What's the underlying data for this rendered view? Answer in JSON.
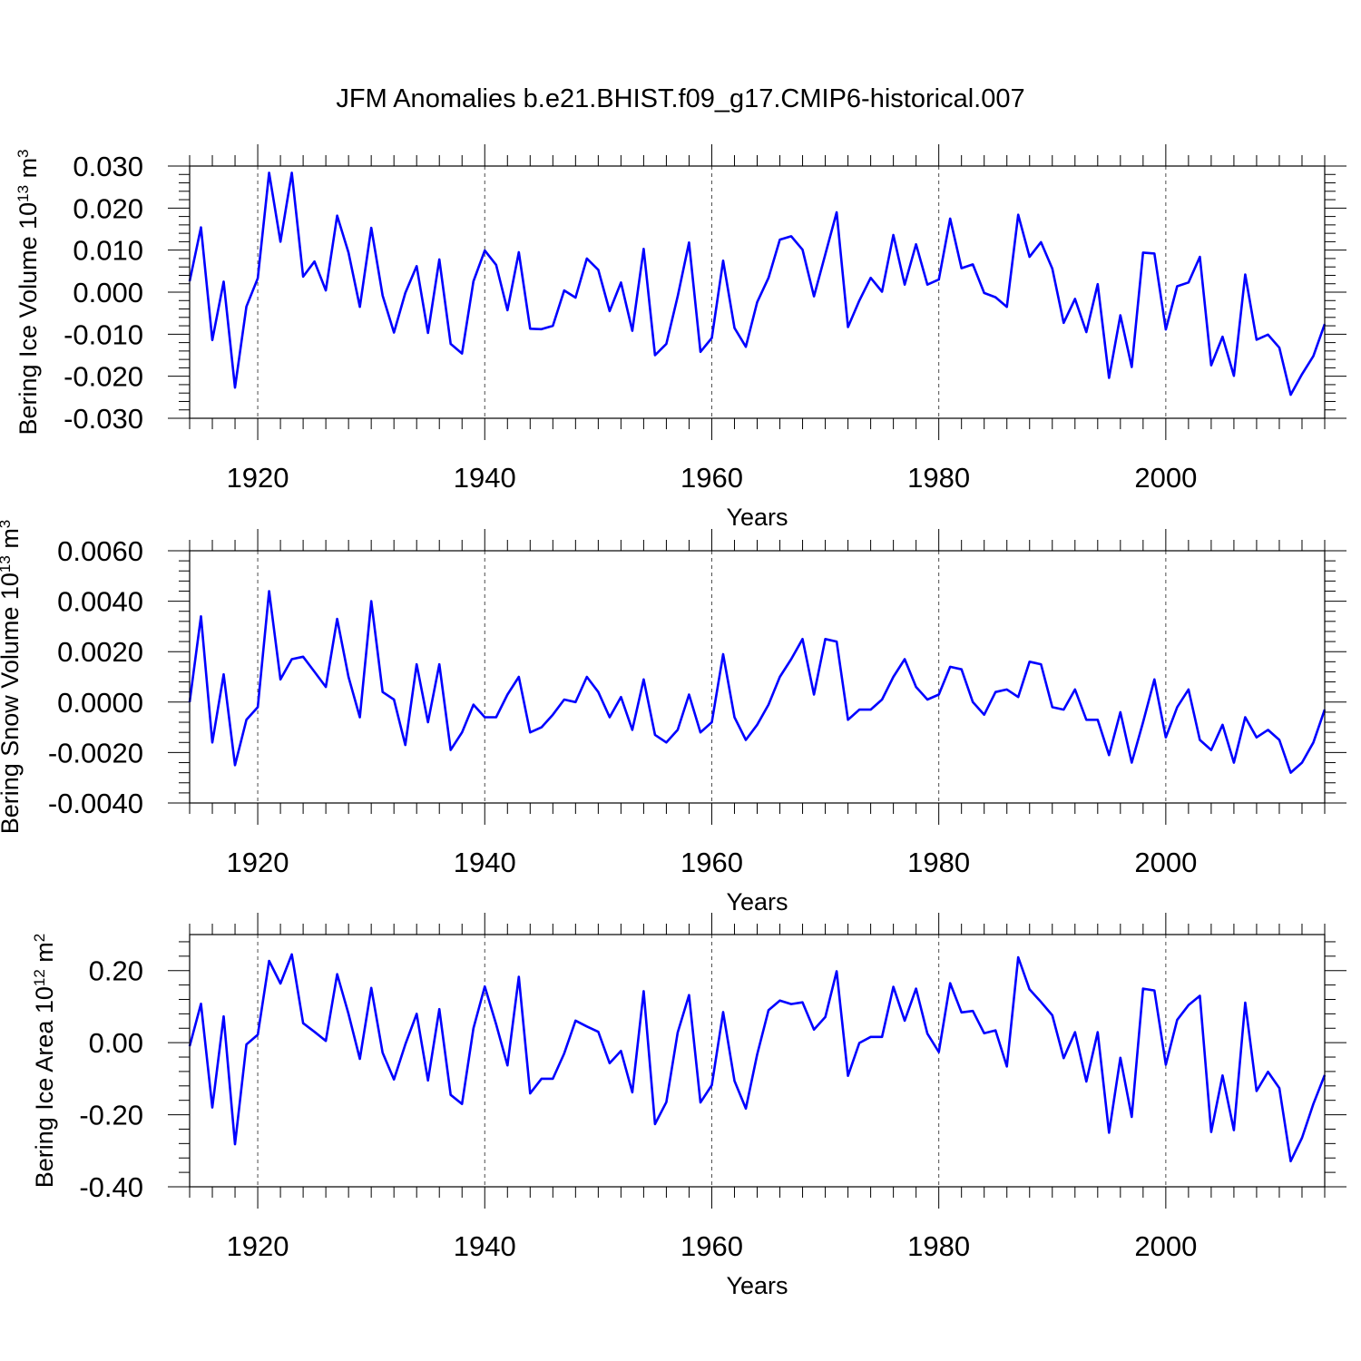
{
  "title": "JFM Anomalies b.e21.BHIST.f09_g17.CMIP6-historical.007",
  "colors": {
    "line": "#0000ff",
    "axis": "#000000",
    "grid": "#000000"
  },
  "chart_data": [
    {
      "type": "line",
      "name": "ice-volume",
      "ylabel_main": "Bering Ice Volume 10",
      "ylabel_exp": "13",
      "ylabel_unit": " m",
      "ylabel_unit_exp": "3",
      "xlabel": "Years",
      "xlim": [
        1914,
        2014
      ],
      "ylim": [
        -0.03,
        0.03
      ],
      "yticks": [
        -0.03,
        -0.02,
        -0.01,
        0.0,
        0.01,
        0.02,
        0.03
      ],
      "ytick_labels": [
        "-0.030",
        "-0.020",
        "-0.010",
        "0.000",
        "0.010",
        "0.020",
        "0.030"
      ],
      "xticks": [
        1920,
        1940,
        1960,
        1980,
        2000
      ],
      "xtick_labels": [
        "1920",
        "1940",
        "1960",
        "1980",
        "2000"
      ],
      "series": [
        {
          "name": "Bering Ice Volume",
          "x_start": 1914,
          "values": [
            0.0026,
            0.0154,
            -0.0114,
            0.0025,
            -0.0227,
            -0.0034,
            0.0033,
            0.0284,
            0.012,
            0.0284,
            0.0037,
            0.0073,
            0.0004,
            0.0182,
            0.0094,
            -0.0035,
            0.0153,
            -0.0008,
            -0.0096,
            -0.0002,
            0.0062,
            -0.0097,
            0.0078,
            -0.0123,
            -0.0146,
            0.0026,
            0.0099,
            0.0065,
            -0.0043,
            0.0095,
            -0.0087,
            -0.0088,
            -0.008,
            0.0004,
            -0.0013,
            0.008,
            0.0053,
            -0.0045,
            0.0023,
            -0.0092,
            0.0103,
            -0.015,
            -0.0123,
            -0.001,
            0.0118,
            -0.0142,
            -0.0109,
            0.0075,
            -0.0085,
            -0.013,
            -0.0024,
            0.0034,
            0.0125,
            0.0133,
            0.0101,
            -0.001,
            0.009,
            0.019,
            -0.0083,
            -0.002,
            0.0034,
            0.0001,
            0.0136,
            0.0018,
            0.0114,
            0.0018,
            0.003,
            0.0175,
            0.0057,
            0.0066,
            -0.0002,
            -0.0012,
            -0.0035,
            0.0184,
            0.0084,
            0.0119,
            0.0056,
            -0.0073,
            -0.0016,
            -0.0095,
            0.0019,
            -0.0204,
            -0.0055,
            -0.0178,
            0.0094,
            0.0092,
            -0.0089,
            0.0014,
            0.0023,
            0.0084,
            -0.0174,
            -0.0106,
            -0.0199,
            0.0042,
            -0.0113,
            -0.0101,
            -0.0132,
            -0.0244,
            -0.0195,
            -0.0152,
            -0.0076
          ]
        }
      ]
    },
    {
      "type": "line",
      "name": "snow-volume",
      "ylabel_main": "Bering Snow Volume 10",
      "ylabel_exp": "13",
      "ylabel_unit": " m",
      "ylabel_unit_exp": "3",
      "xlabel": "Years",
      "xlim": [
        1914,
        2014
      ],
      "ylim": [
        -0.004,
        0.006
      ],
      "yticks": [
        -0.004,
        -0.002,
        0.0,
        0.002,
        0.004,
        0.006
      ],
      "ytick_labels": [
        "-0.0040",
        "-0.0020",
        "0.0000",
        "0.0020",
        "0.0040",
        "0.0060"
      ],
      "xticks": [
        1920,
        1940,
        1960,
        1980,
        2000
      ],
      "xtick_labels": [
        "1920",
        "1940",
        "1960",
        "1980",
        "2000"
      ],
      "series": [
        {
          "name": "Bering Snow Volume",
          "x_start": 1914,
          "values": [
            0.0,
            0.0034,
            -0.0016,
            0.0011,
            -0.0025,
            -0.0007,
            -0.0002,
            0.0044,
            0.0009,
            0.0017,
            0.0018,
            0.0012,
            0.0006,
            0.0033,
            0.001,
            -0.0006,
            0.004,
            0.0004,
            0.0001,
            -0.0017,
            0.0015,
            -0.0008,
            0.0015,
            -0.0019,
            -0.0012,
            -0.0001,
            -0.0006,
            -0.0006,
            0.0003,
            0.001,
            -0.0012,
            -0.001,
            -0.0005,
            0.0001,
            0.0,
            0.001,
            0.0004,
            -0.0006,
            0.0002,
            -0.0011,
            0.0009,
            -0.0013,
            -0.0016,
            -0.0011,
            0.0003,
            -0.0012,
            -0.0008,
            0.0019,
            -0.0006,
            -0.0015,
            -0.0009,
            -0.0001,
            0.001,
            0.0017,
            0.0025,
            0.0003,
            0.0025,
            0.0024,
            -0.0007,
            -0.0003,
            -0.0003,
            0.0001,
            0.001,
            0.0017,
            0.0006,
            0.0001,
            0.0003,
            0.0014,
            0.0013,
            -0.0,
            -0.0005,
            0.0004,
            0.0005,
            0.0002,
            0.0016,
            0.0015,
            -0.0002,
            -0.0003,
            0.0005,
            -0.0007,
            -0.0007,
            -0.0021,
            -0.0004,
            -0.0024,
            -0.0008,
            0.0009,
            -0.0014,
            -0.0002,
            0.0005,
            -0.0015,
            -0.0019,
            -0.0009,
            -0.0024,
            -0.0006,
            -0.0014,
            -0.0011,
            -0.0015,
            -0.0028,
            -0.0024,
            -0.0016,
            -0.0003
          ]
        }
      ]
    },
    {
      "type": "line",
      "name": "ice-area",
      "ylabel_main": "Bering Ice Area 10",
      "ylabel_exp": "12",
      "ylabel_unit": " m",
      "ylabel_unit_exp": "2",
      "xlabel": "Years",
      "xlim": [
        1914,
        2014
      ],
      "ylim": [
        -0.4,
        0.3
      ],
      "yticks": [
        -0.4,
        -0.2,
        0.0,
        0.2
      ],
      "ytick_labels": [
        "-0.40",
        "-0.20",
        "0.00",
        "0.20"
      ],
      "xticks": [
        1920,
        1940,
        1960,
        1980,
        2000
      ],
      "xtick_labels": [
        "1920",
        "1940",
        "1960",
        "1980",
        "2000"
      ],
      "series": [
        {
          "name": "Bering Ice Area",
          "x_start": 1914,
          "values": [
            -0.01,
            0.108,
            -0.18,
            0.073,
            -0.282,
            -0.005,
            0.022,
            0.227,
            0.164,
            0.245,
            0.054,
            0.03,
            0.005,
            0.19,
            0.08,
            -0.045,
            0.152,
            -0.028,
            -0.102,
            -0.005,
            0.08,
            -0.105,
            0.093,
            -0.145,
            -0.17,
            0.04,
            0.156,
            0.051,
            -0.063,
            0.183,
            -0.141,
            -0.1,
            -0.1,
            -0.03,
            0.061,
            0.045,
            0.03,
            -0.057,
            -0.023,
            -0.138,
            0.143,
            -0.226,
            -0.165,
            0.028,
            0.132,
            -0.166,
            -0.118,
            0.085,
            -0.106,
            -0.183,
            -0.033,
            0.09,
            0.117,
            0.107,
            0.112,
            0.036,
            0.071,
            0.198,
            -0.092,
            -0.001,
            0.016,
            0.016,
            0.155,
            0.061,
            0.15,
            0.025,
            -0.026,
            0.165,
            0.084,
            0.088,
            0.026,
            0.034,
            -0.066,
            0.237,
            0.148,
            0.113,
            0.076,
            -0.043,
            0.029,
            -0.108,
            0.029,
            -0.25,
            -0.042,
            -0.206,
            0.15,
            0.145,
            -0.061,
            0.063,
            0.104,
            0.13,
            -0.248,
            -0.091,
            -0.243,
            0.111,
            -0.134,
            -0.081,
            -0.126,
            -0.329,
            -0.264,
            -0.17,
            -0.09
          ]
        }
      ]
    }
  ]
}
